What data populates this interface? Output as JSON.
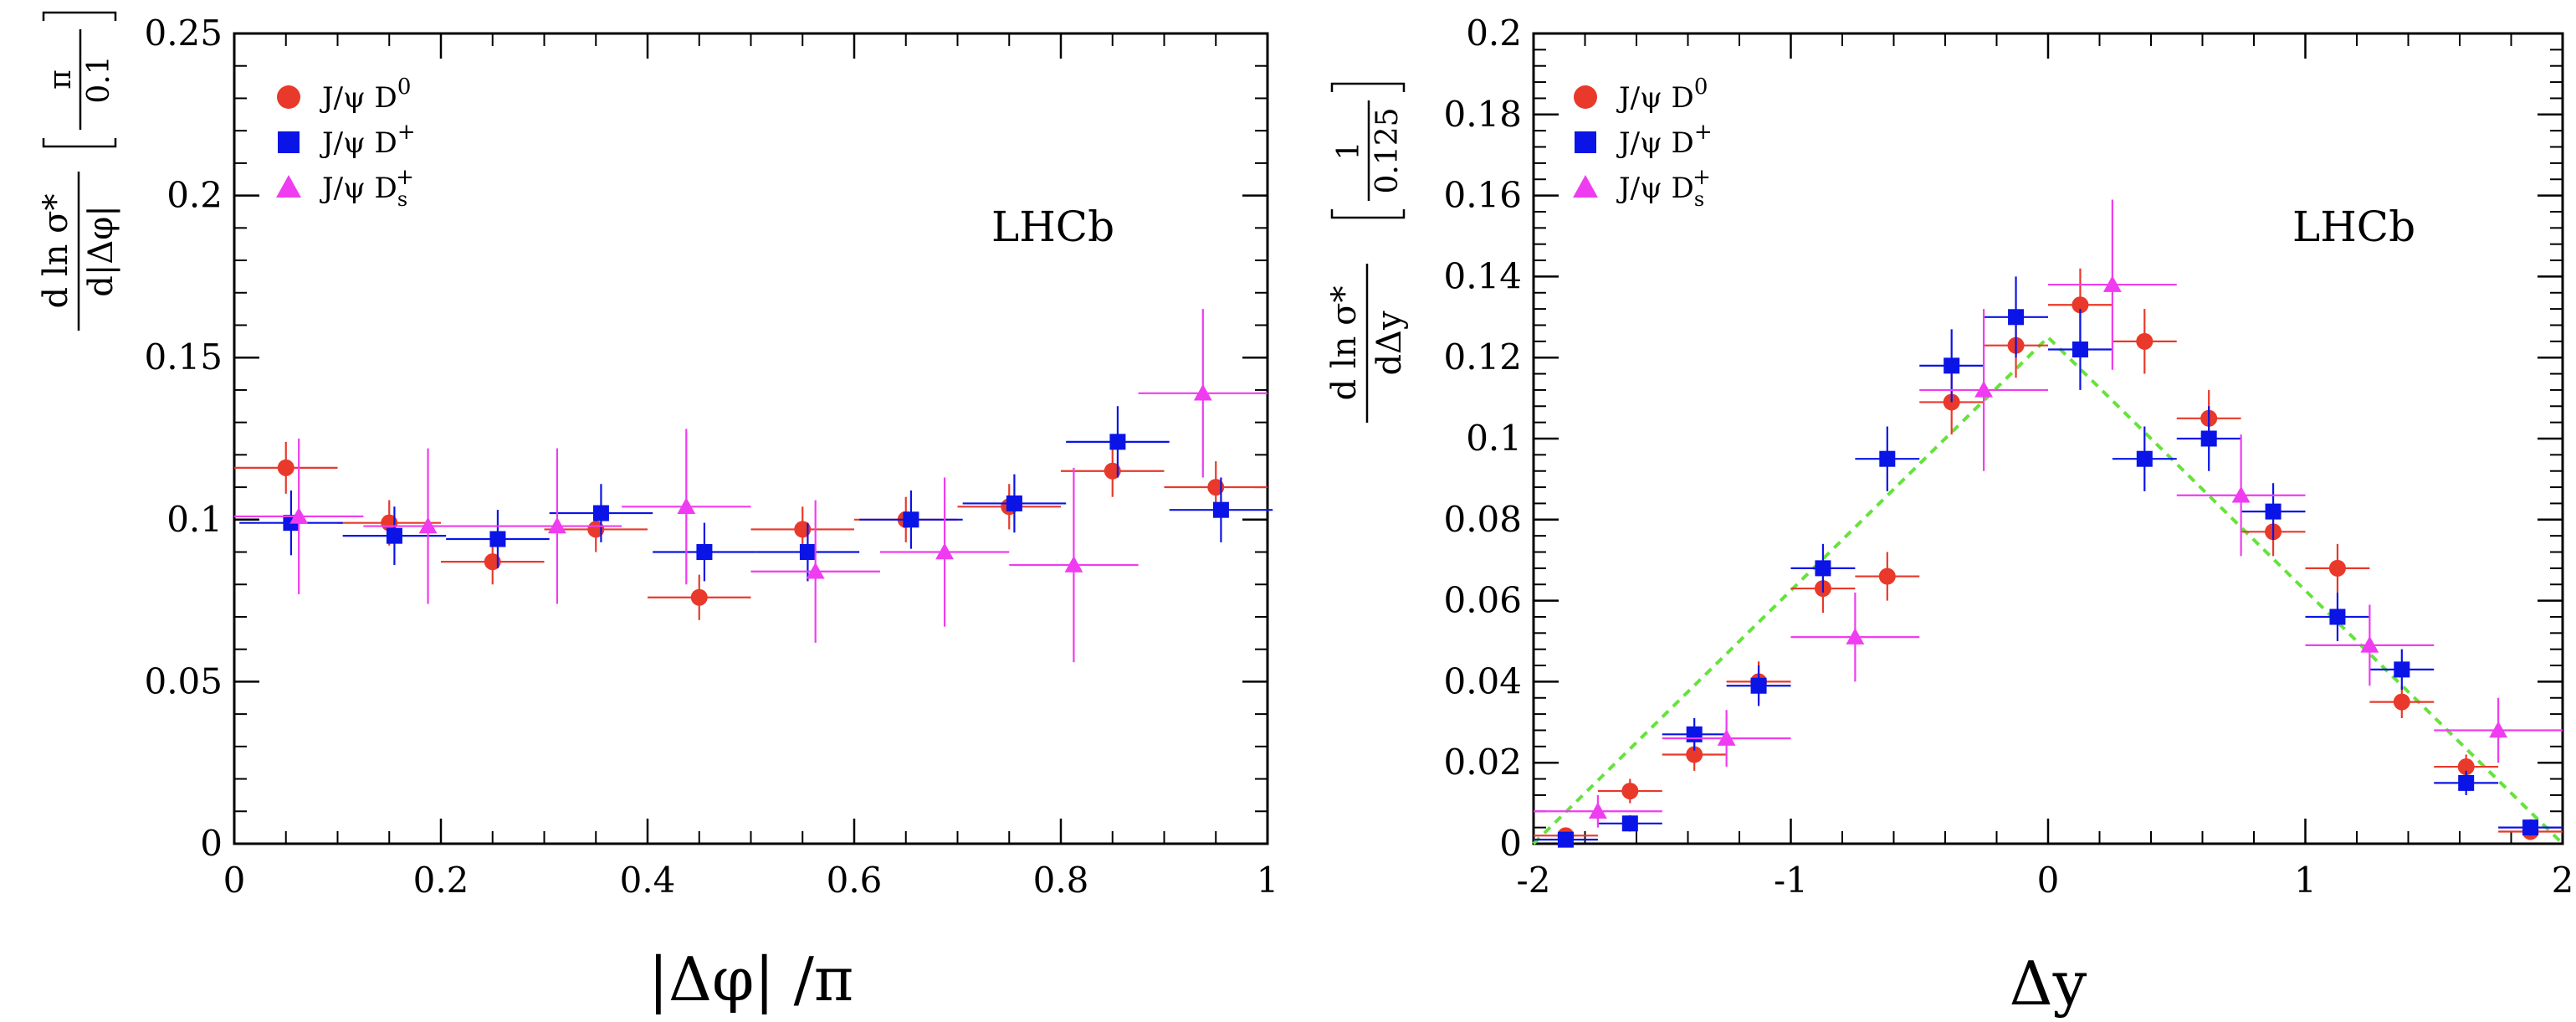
{
  "chart_data": [
    {
      "type": "scatter",
      "title": "",
      "annotation": "LHCb",
      "xlabel": "|Δφ| /π",
      "ylabel": {
        "numerator": "d ln σ*",
        "denominator": "d|Δφ|",
        "unit_numerator": "π",
        "unit_denominator": "0.1"
      },
      "xlim": [
        0,
        1
      ],
      "ylim": [
        0,
        0.25
      ],
      "xticks": [
        "0",
        "0.2",
        "0.4",
        "0.6",
        "0.8",
        "1"
      ],
      "yticks": [
        "0",
        "0.05",
        "0.1",
        "0.15",
        "0.2",
        "0.25"
      ],
      "legend_position": "top-left",
      "series": [
        {
          "name": "J/ψ D0",
          "label": {
            "base": "J/ψ D",
            "sup": "0",
            "sub": ""
          },
          "marker": "circle",
          "color": "#e8392a",
          "points": [
            {
              "x": 0.05,
              "y": 0.116,
              "xerr": 0.05,
              "yerr": 0.008
            },
            {
              "x": 0.15,
              "y": 0.099,
              "xerr": 0.05,
              "yerr": 0.007
            },
            {
              "x": 0.25,
              "y": 0.087,
              "xerr": 0.05,
              "yerr": 0.007
            },
            {
              "x": 0.35,
              "y": 0.097,
              "xerr": 0.05,
              "yerr": 0.007
            },
            {
              "x": 0.45,
              "y": 0.076,
              "xerr": 0.05,
              "yerr": 0.007
            },
            {
              "x": 0.55,
              "y": 0.097,
              "xerr": 0.05,
              "yerr": 0.007
            },
            {
              "x": 0.65,
              "y": 0.1,
              "xerr": 0.05,
              "yerr": 0.007
            },
            {
              "x": 0.75,
              "y": 0.104,
              "xerr": 0.05,
              "yerr": 0.007
            },
            {
              "x": 0.85,
              "y": 0.115,
              "xerr": 0.05,
              "yerr": 0.008
            },
            {
              "x": 0.95,
              "y": 0.11,
              "xerr": 0.05,
              "yerr": 0.008
            }
          ]
        },
        {
          "name": "J/ψ D+",
          "label": {
            "base": "J/ψ D",
            "sup": "+",
            "sub": ""
          },
          "marker": "square",
          "color": "#0a14e6",
          "points": [
            {
              "x": 0.055,
              "y": 0.099,
              "xerr": 0.05,
              "yerr": 0.01
            },
            {
              "x": 0.155,
              "y": 0.095,
              "xerr": 0.05,
              "yerr": 0.009
            },
            {
              "x": 0.255,
              "y": 0.094,
              "xerr": 0.05,
              "yerr": 0.009
            },
            {
              "x": 0.355,
              "y": 0.102,
              "xerr": 0.05,
              "yerr": 0.009
            },
            {
              "x": 0.455,
              "y": 0.09,
              "xerr": 0.05,
              "yerr": 0.009
            },
            {
              "x": 0.555,
              "y": 0.09,
              "xerr": 0.05,
              "yerr": 0.009
            },
            {
              "x": 0.655,
              "y": 0.1,
              "xerr": 0.05,
              "yerr": 0.009
            },
            {
              "x": 0.755,
              "y": 0.105,
              "xerr": 0.05,
              "yerr": 0.009
            },
            {
              "x": 0.855,
              "y": 0.124,
              "xerr": 0.05,
              "yerr": 0.011
            },
            {
              "x": 0.955,
              "y": 0.103,
              "xerr": 0.05,
              "yerr": 0.01
            }
          ]
        },
        {
          "name": "J/ψ Ds+",
          "label": {
            "base": "J/ψ D",
            "sup": "+",
            "sub": "s"
          },
          "marker": "triangle",
          "color": "#f03cf0",
          "points": [
            {
              "x": 0.0625,
              "y": 0.101,
              "xerr": 0.0625,
              "yerr": 0.024
            },
            {
              "x": 0.1875,
              "y": 0.098,
              "xerr": 0.0625,
              "yerr": 0.024
            },
            {
              "x": 0.3125,
              "y": 0.098,
              "xerr": 0.0625,
              "yerr": 0.024
            },
            {
              "x": 0.4375,
              "y": 0.104,
              "xerr": 0.0625,
              "yerr": 0.024
            },
            {
              "x": 0.5625,
              "y": 0.084,
              "xerr": 0.0625,
              "yerr": 0.022
            },
            {
              "x": 0.6875,
              "y": 0.09,
              "xerr": 0.0625,
              "yerr": 0.023
            },
            {
              "x": 0.8125,
              "y": 0.086,
              "xerr": 0.0625,
              "yerr": 0.03
            },
            {
              "x": 0.9375,
              "y": 0.139,
              "xerr": 0.0625,
              "yerr": 0.026
            }
          ]
        }
      ]
    },
    {
      "type": "scatter",
      "title": "",
      "annotation": "LHCb",
      "xlabel": "Δy",
      "ylabel": {
        "numerator": "d ln σ*",
        "denominator": "dΔy",
        "unit_numerator": "1",
        "unit_denominator": "0.125"
      },
      "xlim": [
        -2,
        2
      ],
      "ylim": [
        0,
        0.2
      ],
      "xticks": [
        "-2",
        "-1",
        "0",
        "1",
        "2"
      ],
      "yticks": [
        "0",
        "0.02",
        "0.04",
        "0.06",
        "0.08",
        "0.1",
        "0.12",
        "0.14",
        "0.16",
        "0.18",
        "0.2"
      ],
      "legend_position": "top-left",
      "reference_line": {
        "style": "dashed",
        "color": "#66e23c",
        "points": [
          [
            -2,
            0
          ],
          [
            0,
            0.125
          ],
          [
            2,
            0
          ]
        ]
      },
      "series": [
        {
          "name": "J/ψ D0",
          "label": {
            "base": "J/ψ D",
            "sup": "0",
            "sub": ""
          },
          "marker": "circle",
          "color": "#e8392a",
          "points": [
            {
              "x": -1.875,
              "y": 0.002,
              "xerr": 0.125,
              "yerr": 0.001
            },
            {
              "x": -1.625,
              "y": 0.013,
              "xerr": 0.125,
              "yerr": 0.003
            },
            {
              "x": -1.375,
              "y": 0.022,
              "xerr": 0.125,
              "yerr": 0.004
            },
            {
              "x": -1.125,
              "y": 0.04,
              "xerr": 0.125,
              "yerr": 0.005
            },
            {
              "x": -0.875,
              "y": 0.063,
              "xerr": 0.125,
              "yerr": 0.006
            },
            {
              "x": -0.625,
              "y": 0.066,
              "xerr": 0.125,
              "yerr": 0.006
            },
            {
              "x": -0.375,
              "y": 0.109,
              "xerr": 0.125,
              "yerr": 0.008
            },
            {
              "x": -0.125,
              "y": 0.123,
              "xerr": 0.125,
              "yerr": 0.008
            },
            {
              "x": 0.125,
              "y": 0.133,
              "xerr": 0.125,
              "yerr": 0.009
            },
            {
              "x": 0.375,
              "y": 0.124,
              "xerr": 0.125,
              "yerr": 0.008
            },
            {
              "x": 0.625,
              "y": 0.105,
              "xerr": 0.125,
              "yerr": 0.007
            },
            {
              "x": 0.875,
              "y": 0.077,
              "xerr": 0.125,
              "yerr": 0.006
            },
            {
              "x": 1.125,
              "y": 0.068,
              "xerr": 0.125,
              "yerr": 0.006
            },
            {
              "x": 1.375,
              "y": 0.035,
              "xerr": 0.125,
              "yerr": 0.004
            },
            {
              "x": 1.625,
              "y": 0.019,
              "xerr": 0.125,
              "yerr": 0.003
            },
            {
              "x": 1.875,
              "y": 0.003,
              "xerr": 0.125,
              "yerr": 0.001
            }
          ]
        },
        {
          "name": "J/ψ D+",
          "label": {
            "base": "J/ψ D",
            "sup": "+",
            "sub": ""
          },
          "marker": "square",
          "color": "#0a14e6",
          "points": [
            {
              "x": -1.875,
              "y": 0.001,
              "xerr": 0.125,
              "yerr": 0.001
            },
            {
              "x": -1.625,
              "y": 0.005,
              "xerr": 0.125,
              "yerr": 0.002
            },
            {
              "x": -1.375,
              "y": 0.027,
              "xerr": 0.125,
              "yerr": 0.004
            },
            {
              "x": -1.125,
              "y": 0.039,
              "xerr": 0.125,
              "yerr": 0.005
            },
            {
              "x": -0.875,
              "y": 0.068,
              "xerr": 0.125,
              "yerr": 0.006
            },
            {
              "x": -0.625,
              "y": 0.095,
              "xerr": 0.125,
              "yerr": 0.008
            },
            {
              "x": -0.375,
              "y": 0.118,
              "xerr": 0.125,
              "yerr": 0.009
            },
            {
              "x": -0.125,
              "y": 0.13,
              "xerr": 0.125,
              "yerr": 0.01
            },
            {
              "x": 0.125,
              "y": 0.122,
              "xerr": 0.125,
              "yerr": 0.01
            },
            {
              "x": 0.375,
              "y": 0.095,
              "xerr": 0.125,
              "yerr": 0.008
            },
            {
              "x": 0.625,
              "y": 0.1,
              "xerr": 0.125,
              "yerr": 0.008
            },
            {
              "x": 0.875,
              "y": 0.082,
              "xerr": 0.125,
              "yerr": 0.007
            },
            {
              "x": 1.125,
              "y": 0.056,
              "xerr": 0.125,
              "yerr": 0.006
            },
            {
              "x": 1.375,
              "y": 0.043,
              "xerr": 0.125,
              "yerr": 0.005
            },
            {
              "x": 1.625,
              "y": 0.015,
              "xerr": 0.125,
              "yerr": 0.003
            },
            {
              "x": 1.875,
              "y": 0.004,
              "xerr": 0.125,
              "yerr": 0.002
            }
          ]
        },
        {
          "name": "J/ψ Ds+",
          "label": {
            "base": "J/ψ D",
            "sup": "+",
            "sub": "s"
          },
          "marker": "triangle",
          "color": "#f03cf0",
          "points": [
            {
              "x": -1.75,
              "y": 0.008,
              "xerr": 0.25,
              "yerr": 0.004
            },
            {
              "x": -1.25,
              "y": 0.026,
              "xerr": 0.25,
              "yerr": 0.007
            },
            {
              "x": -0.75,
              "y": 0.051,
              "xerr": 0.25,
              "yerr": 0.011
            },
            {
              "x": -0.25,
              "y": 0.112,
              "xerr": 0.25,
              "yerr": 0.02
            },
            {
              "x": 0.25,
              "y": 0.138,
              "xerr": 0.25,
              "yerr": 0.021
            },
            {
              "x": 0.75,
              "y": 0.086,
              "xerr": 0.25,
              "yerr": 0.015
            },
            {
              "x": 1.25,
              "y": 0.049,
              "xerr": 0.25,
              "yerr": 0.01
            },
            {
              "x": 1.75,
              "y": 0.028,
              "xerr": 0.25,
              "yerr": 0.008
            }
          ]
        }
      ]
    }
  ]
}
